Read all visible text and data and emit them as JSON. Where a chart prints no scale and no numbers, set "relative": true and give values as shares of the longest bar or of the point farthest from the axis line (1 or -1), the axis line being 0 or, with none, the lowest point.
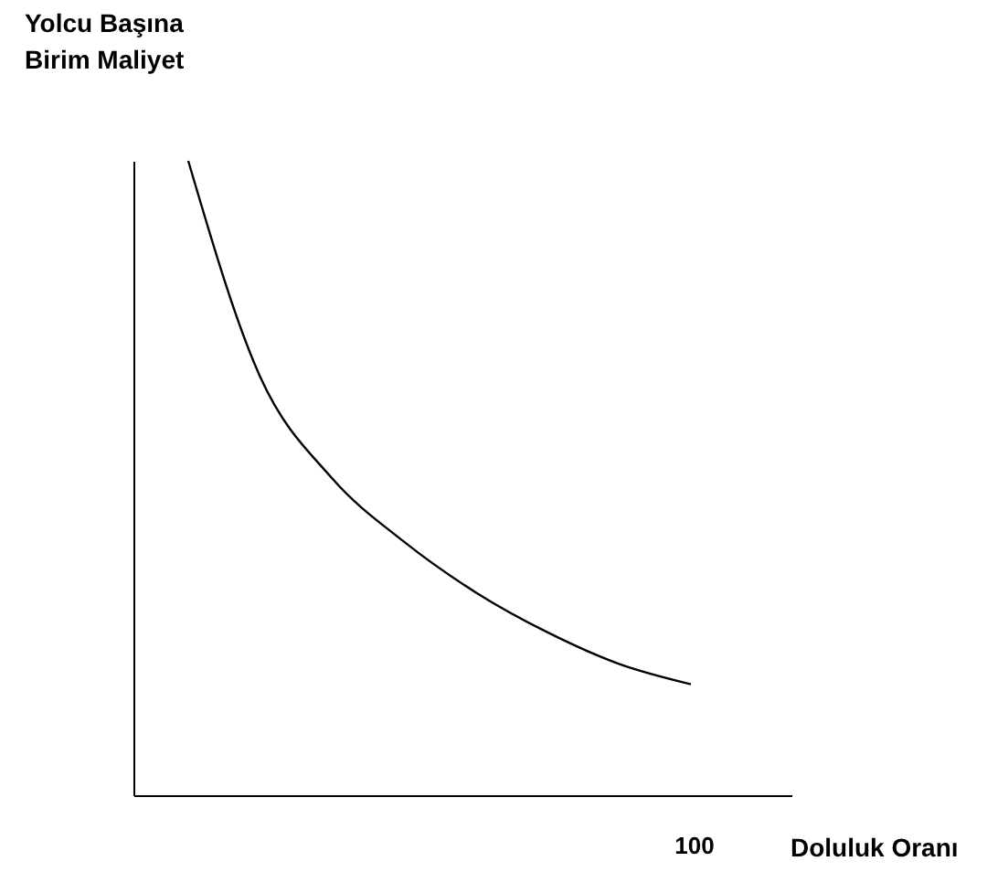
{
  "chart_data": {
    "type": "line",
    "xlabel": "Doluluk Oranı",
    "ylabel": "Yolcu Başına Birim Maliyet",
    "categories": [
      null,
      null,
      null,
      null,
      null,
      null,
      null,
      null
    ],
    "series": [
      {
        "color": "#000000",
        "values": [
          1,
          0.66,
          0.5,
          0.4,
          0.32,
          0.257,
          0.207,
          0.175
        ]
      }
    ],
    "relative": true,
    "annotations": [
      "100"
    ],
    "grid": false,
    "legend": false,
    "marker": "none",
    "line_style": "solid"
  }
}
